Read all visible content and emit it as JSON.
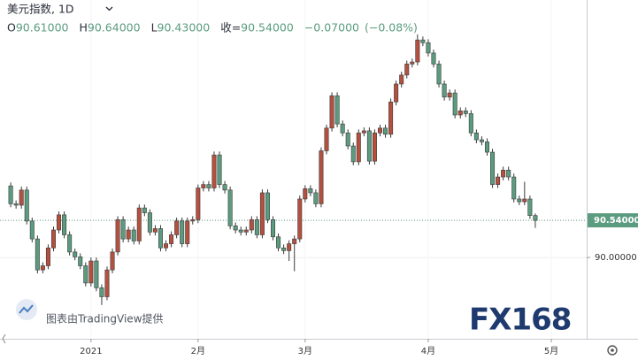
{
  "chart_data": {
    "type": "candlestick",
    "title": "美元指数, 1D",
    "ohlc_legend": [
      {
        "prefix": "O",
        "value": 90.61,
        "label": "90.61000"
      },
      {
        "prefix": "H",
        "value": 90.64,
        "label": "90.64000"
      },
      {
        "prefix": "L",
        "value": 90.43,
        "label": "90.43000"
      },
      {
        "prefix": "收=",
        "value": 90.54,
        "label": "90.54000"
      }
    ],
    "change": {
      "value": -0.07,
      "label": "−0.07000"
    },
    "change_pct": {
      "value": -0.08,
      "label": "(−0.08%)"
    },
    "last_price": {
      "value": 90.54,
      "label": "90.54000"
    },
    "attribution": "图表由TradingView提供",
    "logo": "FX168",
    "up_color": "#b5503f",
    "down_color": "#5b9c80",
    "grid": true,
    "xlim": [
      -2,
      107.6
    ],
    "xticks": [
      {
        "value": 15,
        "label": "2021"
      },
      {
        "value": 35,
        "label": "2月"
      },
      {
        "value": 55,
        "label": "3月"
      },
      {
        "value": 78,
        "label": "4月"
      },
      {
        "value": 101,
        "label": "5月"
      }
    ],
    "ylim": [
      88.82,
      93.74
    ],
    "yticks": [
      {
        "value": 90,
        "label": "90.00000"
      }
    ],
    "open": [
      91.04,
      90.78,
      90.76,
      90.98,
      90.53,
      90.27,
      89.82,
      89.88,
      90.14,
      90.4,
      90.62,
      90.33,
      90.08,
      90.01,
      89.88,
      89.63,
      89.95,
      89.56,
      89.43,
      89.82,
      90.08,
      90.55,
      90.27,
      90.4,
      90.24,
      90.72,
      90.65,
      90.37,
      90.42,
      90.14,
      90.2,
      90.33,
      90.53,
      90.2,
      90.53,
      90.55,
      91.01,
      91.06,
      91.01,
      91.49,
      91.06,
      90.98,
      90.46,
      90.4,
      90.37,
      90.4,
      90.55,
      90.33,
      90.94,
      90.55,
      90.3,
      90.14,
      90.1,
      90.2,
      90.27,
      90.85,
      91.0,
      90.94,
      90.78,
      91.55,
      91.88,
      92.35,
      91.94,
      91.81,
      91.62,
      91.39,
      91.81,
      91.84,
      91.4,
      91.81,
      91.88,
      91.79,
      92.26,
      92.52,
      92.65,
      92.81,
      92.84,
      93.16,
      93.12,
      92.97,
      92.81,
      92.52,
      92.33,
      92.39,
      92.07,
      92.13,
      92.09,
      91.81,
      91.71,
      91.68,
      91.53,
      91.06,
      91.17,
      91.27,
      91.17,
      90.85,
      90.81,
      90.85,
      90.61
    ],
    "high": [
      91.09,
      90.83,
      91.03,
      91.03,
      90.58,
      90.32,
      89.93,
      90.19,
      90.45,
      90.67,
      90.67,
      90.38,
      90.13,
      90.06,
      89.93,
      90.0,
      90.0,
      89.61,
      89.87,
      90.13,
      90.6,
      90.6,
      90.45,
      90.45,
      90.77,
      90.77,
      90.7,
      90.47,
      90.47,
      90.25,
      90.38,
      90.58,
      90.58,
      90.58,
      90.6,
      91.06,
      91.11,
      91.11,
      91.54,
      91.54,
      91.11,
      91.03,
      90.51,
      90.45,
      90.45,
      90.6,
      90.6,
      90.99,
      90.99,
      90.6,
      90.35,
      90.19,
      90.25,
      90.32,
      90.9,
      91.05,
      91.05,
      90.99,
      91.6,
      91.93,
      92.4,
      92.4,
      91.99,
      91.86,
      91.67,
      91.86,
      91.89,
      91.89,
      91.86,
      91.93,
      91.93,
      92.31,
      92.57,
      92.7,
      92.86,
      92.89,
      93.24,
      93.21,
      93.17,
      93.02,
      92.86,
      92.57,
      92.44,
      92.44,
      92.18,
      92.18,
      92.14,
      91.86,
      91.76,
      91.73,
      91.58,
      91.22,
      91.32,
      91.32,
      91.22,
      90.9,
      91.1,
      90.9,
      90.64
    ],
    "low": [
      90.73,
      90.71,
      90.71,
      90.48,
      90.22,
      89.77,
      89.77,
      89.83,
      90.09,
      90.35,
      90.28,
      90.03,
      89.96,
      89.83,
      89.58,
      89.58,
      89.51,
      89.31,
      89.38,
      89.77,
      90.03,
      90.22,
      90.22,
      90.19,
      90.19,
      90.6,
      90.32,
      90.32,
      90.09,
      90.09,
      90.15,
      90.28,
      90.15,
      90.15,
      90.48,
      90.5,
      90.96,
      90.96,
      90.96,
      91.01,
      90.93,
      90.41,
      90.35,
      90.32,
      90.32,
      90.35,
      90.28,
      90.28,
      90.5,
      90.25,
      90.09,
      90.05,
      89.95,
      89.8,
      90.22,
      90.8,
      90.89,
      90.73,
      90.73,
      91.5,
      91.83,
      91.89,
      91.76,
      91.57,
      91.34,
      91.34,
      91.76,
      91.35,
      91.35,
      91.76,
      91.74,
      91.74,
      92.21,
      92.47,
      92.6,
      92.76,
      92.79,
      93.07,
      92.92,
      92.76,
      92.47,
      92.28,
      92.28,
      92.02,
      92.02,
      92.04,
      91.76,
      91.66,
      91.63,
      91.48,
      91.01,
      91.01,
      91.12,
      91.12,
      90.8,
      90.76,
      90.76,
      90.56,
      90.43
    ],
    "close": [
      90.78,
      90.76,
      90.98,
      90.53,
      90.27,
      89.82,
      89.88,
      90.14,
      90.4,
      90.62,
      90.33,
      90.08,
      90.01,
      89.88,
      89.63,
      89.95,
      89.56,
      89.43,
      89.82,
      90.08,
      90.55,
      90.27,
      90.4,
      90.24,
      90.72,
      90.65,
      90.37,
      90.42,
      90.14,
      90.2,
      90.33,
      90.53,
      90.2,
      90.53,
      90.55,
      91.01,
      91.06,
      91.01,
      91.49,
      91.06,
      90.98,
      90.46,
      90.4,
      90.37,
      90.4,
      90.55,
      90.33,
      90.94,
      90.55,
      90.3,
      90.14,
      90.1,
      90.2,
      90.27,
      90.85,
      91.0,
      90.94,
      90.78,
      91.55,
      91.88,
      92.35,
      91.94,
      91.81,
      91.62,
      91.39,
      91.81,
      91.84,
      91.4,
      91.81,
      91.88,
      91.79,
      92.26,
      92.52,
      92.65,
      92.81,
      92.84,
      93.16,
      93.12,
      92.97,
      92.81,
      92.52,
      92.33,
      92.39,
      92.07,
      92.13,
      92.09,
      91.81,
      91.71,
      91.68,
      91.53,
      91.06,
      91.17,
      91.27,
      91.17,
      90.85,
      90.81,
      90.85,
      90.61,
      90.54
    ]
  }
}
